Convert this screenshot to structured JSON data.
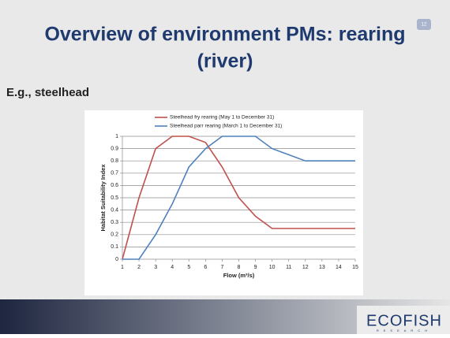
{
  "slide": {
    "title_line1": "Overview of environment PMs: rearing",
    "title_line2": "(river)",
    "page_number": "12",
    "subtitle": "E.g., steelhead",
    "logo": "ECOFISH",
    "logo_tagline": "RESEARCH"
  },
  "chart_data": {
    "type": "line",
    "x": [
      1,
      2,
      3,
      4,
      5,
      6,
      7,
      8,
      9,
      10,
      11,
      12,
      13,
      14,
      15
    ],
    "series": [
      {
        "name": "Steelhead fry rearing (May 1 to December 31)",
        "color": "#c0504d",
        "values": [
          0,
          0.5,
          0.9,
          1,
          1,
          0.95,
          0.75,
          0.5,
          0.35,
          0.25,
          0.25,
          0.25,
          0.25,
          0.25,
          0.25
        ]
      },
      {
        "name": "Steelhead parr rearing (March 1 to December 31)",
        "color": "#4f81bd",
        "values": [
          0,
          0,
          0.2,
          0.45,
          0.75,
          0.9,
          1,
          1,
          1,
          0.9,
          0.85,
          0.8,
          0.8,
          0.8,
          0.8
        ]
      }
    ],
    "xlim": [
      1,
      15
    ],
    "xticks": [
      1,
      2,
      3,
      4,
      5,
      6,
      7,
      8,
      9,
      10,
      11,
      12,
      13,
      14,
      15
    ],
    "ylim": [
      0,
      1
    ],
    "yticks": [
      0,
      0.1,
      0.2,
      0.3,
      0.4,
      0.5,
      0.6,
      0.7,
      0.8,
      0.9,
      1
    ],
    "xlabel": "Flow (m³/s)",
    "ylabel": "Habitat Suitability Index",
    "grid": true,
    "legend": "top"
  }
}
